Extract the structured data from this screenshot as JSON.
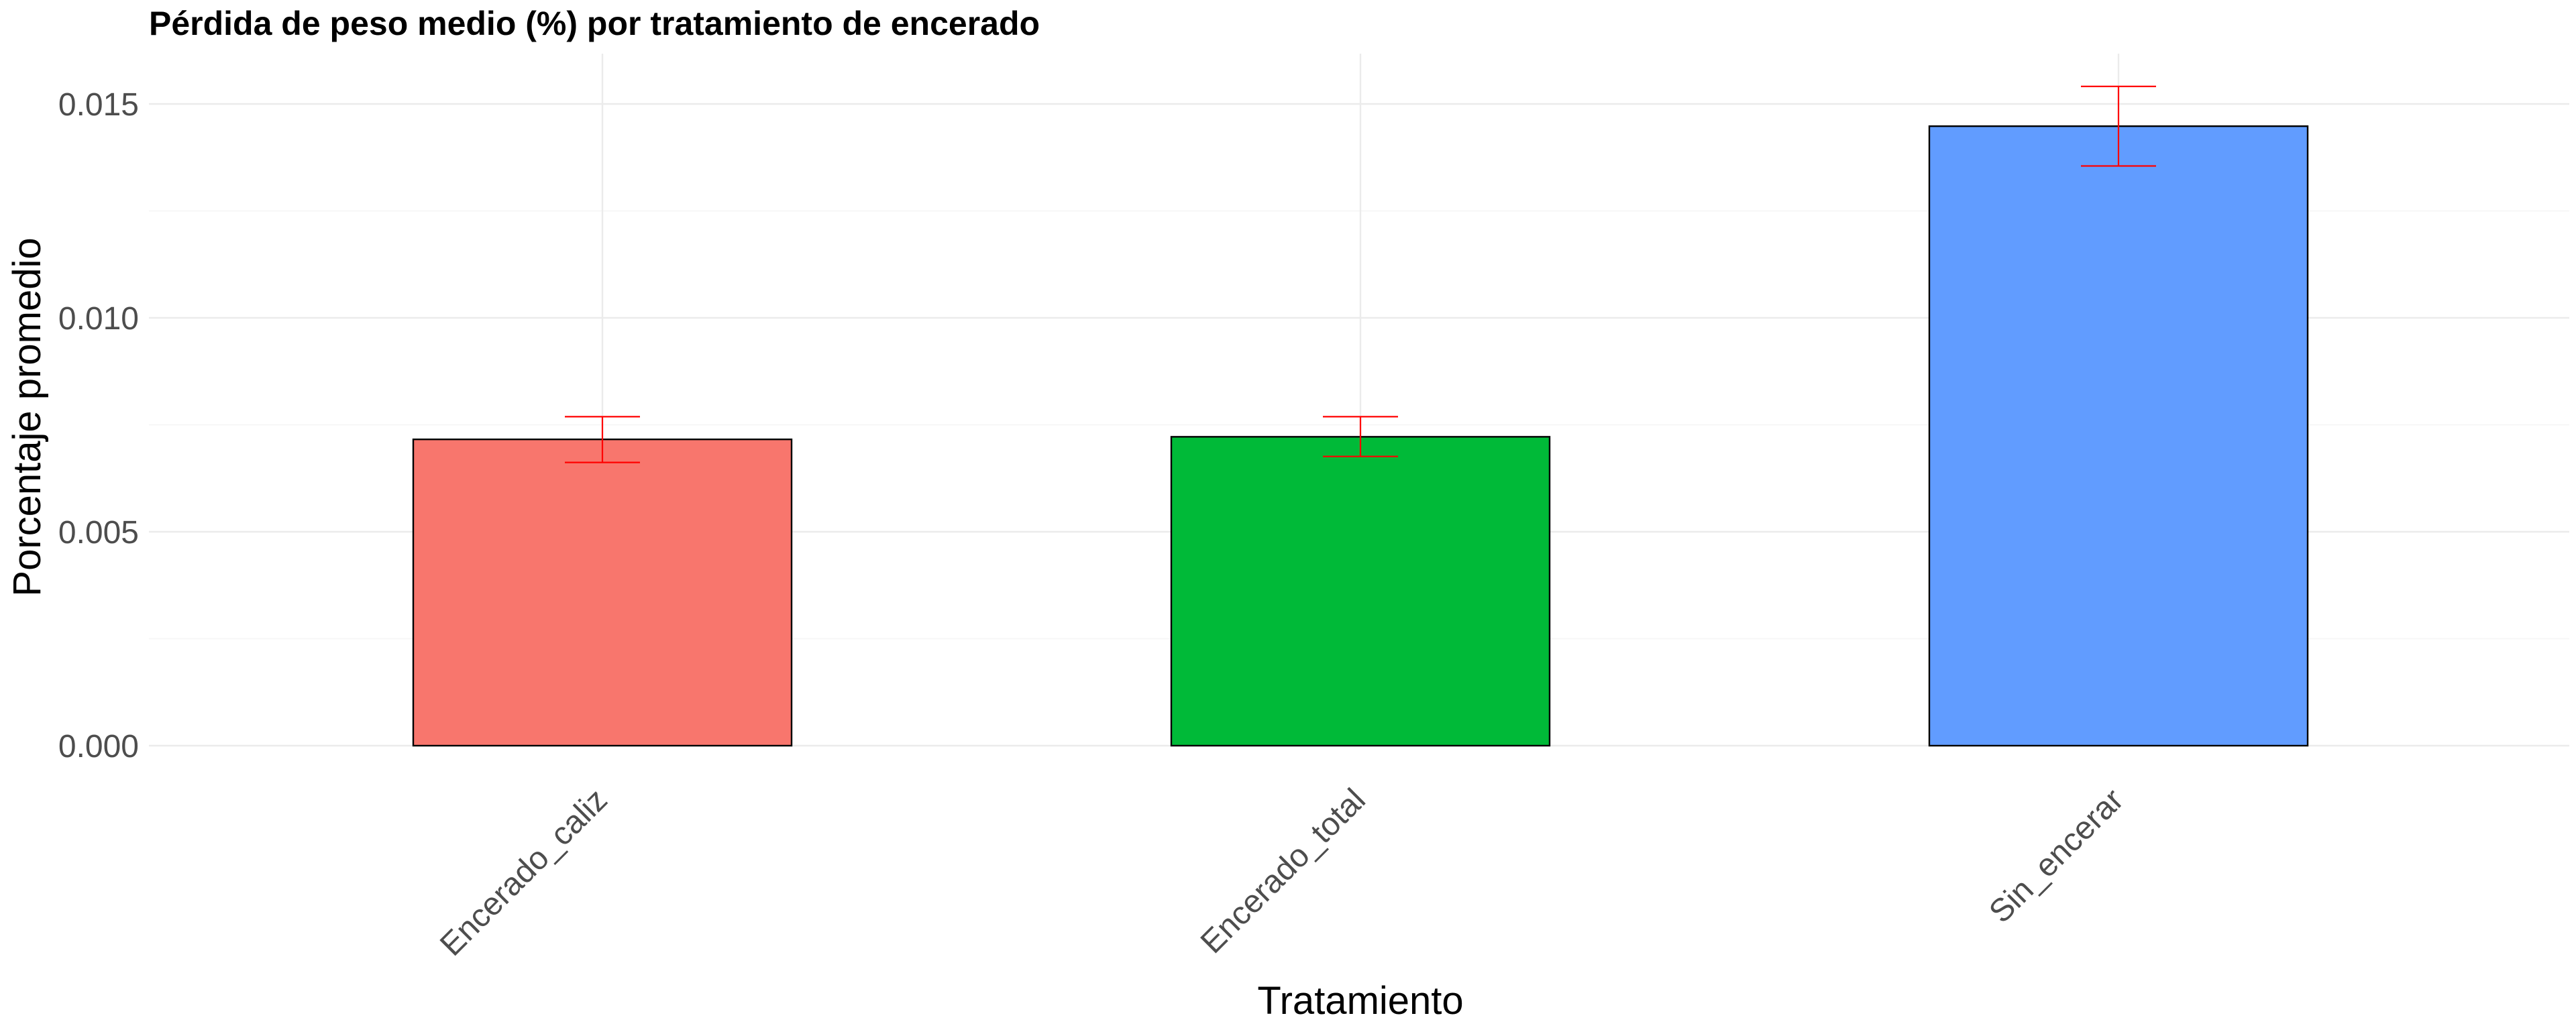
{
  "chart_data": {
    "type": "bar",
    "title": "Pérdida de peso medio (%) por tratamiento de encerado",
    "xlabel": "Tratamiento",
    "ylabel": "Porcentaje promedio",
    "categories": [
      "Encerado_caliz",
      "Encerado_total",
      "Sin_encerar"
    ],
    "values": [
      0.00716,
      0.00722,
      0.01448
    ],
    "error_low": [
      0.00662,
      0.00676,
      0.01355
    ],
    "error_high": [
      0.00769,
      0.00769,
      0.01541
    ],
    "bar_colors": [
      "#F8766D",
      "#00BA38",
      "#619CFF"
    ],
    "error_color": "#FF0000",
    "ylim": [
      0,
      0.0162
    ],
    "yticks": [
      0,
      0.005,
      0.01,
      0.015
    ],
    "ytick_labels": [
      "0.000",
      "0.005",
      "0.010",
      "0.015"
    ],
    "grid": true,
    "legend": "none"
  }
}
